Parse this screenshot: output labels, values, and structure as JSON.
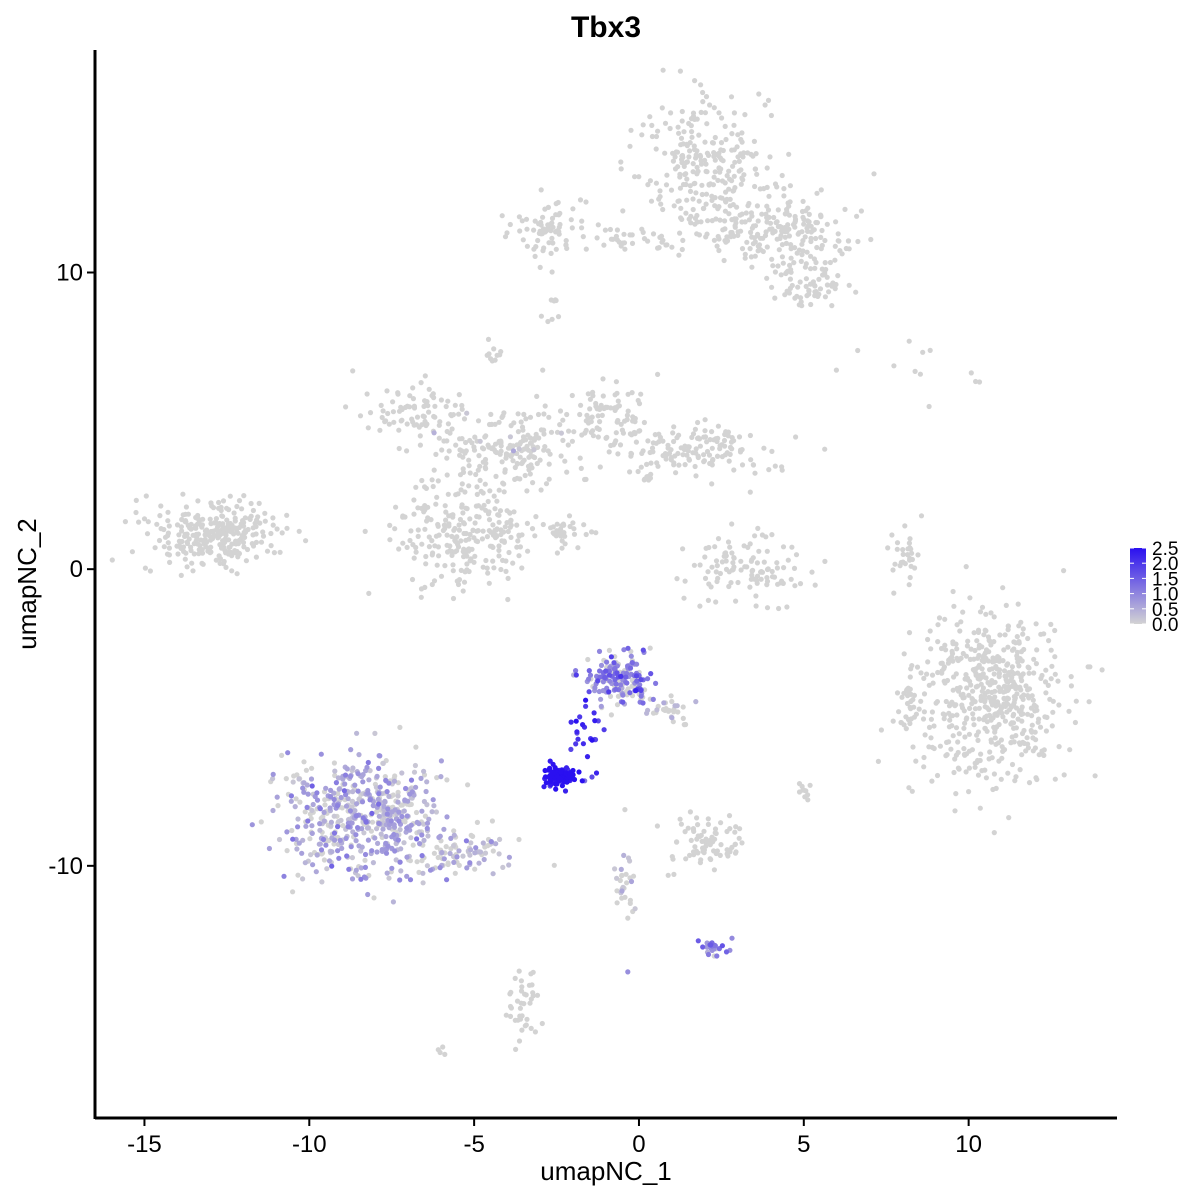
{
  "chart_data": {
    "type": "scatter",
    "title": "Tbx3",
    "xlabel": "umapNC_1",
    "ylabel": "umapNC_2",
    "xlim": [
      -16.5,
      14.5
    ],
    "ylim": [
      -18.5,
      17.5
    ],
    "x_ticks": [
      -15,
      -10,
      -5,
      0,
      5,
      10
    ],
    "x_tick_labels": [
      "-15",
      "-10",
      "-5",
      "0",
      "5",
      "10"
    ],
    "y_ticks": [
      -10,
      0,
      10
    ],
    "y_tick_labels": [
      "-10",
      "0",
      "10"
    ],
    "grid": false,
    "legend_position": "right",
    "color_scale": {
      "low_color": "#d3d3d3",
      "high_color": "#2a10f0",
      "min": 0.0,
      "max": 2.5,
      "breaks": [
        0.0,
        0.5,
        1.0,
        1.5,
        2.0,
        2.5
      ],
      "break_labels": [
        "0.0",
        "0.5",
        "1.0",
        "1.5",
        "2.0",
        "2.5"
      ]
    },
    "clusters": [
      {
        "id": "top-right-branch",
        "center": [
          2.0,
          13.5
        ],
        "spread": [
          1.0,
          1.2
        ],
        "n": 260,
        "expr_mean": 0.0,
        "expr_frac": 0.0
      },
      {
        "id": "top-right-arm",
        "center": [
          4.3,
          11.3
        ],
        "spread": [
          1.1,
          0.6
        ],
        "n": 200,
        "expr_mean": 0.0,
        "expr_frac": 0.0
      },
      {
        "id": "top-left-knob",
        "center": [
          -2.8,
          11.5
        ],
        "spread": [
          0.6,
          0.5
        ],
        "n": 70,
        "expr_mean": 0.0,
        "expr_frac": 0.0
      },
      {
        "id": "top-bridge",
        "center": [
          -0.5,
          11.1
        ],
        "spread": [
          1.3,
          0.2
        ],
        "n": 40,
        "expr_mean": 0.0,
        "expr_frac": 0.0
      },
      {
        "id": "top-tail",
        "center": [
          5.3,
          9.5
        ],
        "spread": [
          0.6,
          0.4
        ],
        "n": 60,
        "expr_mean": 0.0,
        "expr_frac": 0.0
      },
      {
        "id": "isolated-top",
        "center": [
          -2.7,
          8.8
        ],
        "spread": [
          0.15,
          0.3
        ],
        "n": 8,
        "expr_mean": 0.0,
        "expr_frac": 0.0
      },
      {
        "id": "small-top",
        "center": [
          -4.4,
          7.2
        ],
        "spread": [
          0.15,
          0.2
        ],
        "n": 10,
        "expr_mean": 0.0,
        "expr_frac": 0.0
      },
      {
        "id": "star-left-arm",
        "center": [
          -6.5,
          5.3
        ],
        "spread": [
          0.8,
          0.5
        ],
        "n": 90,
        "expr_mean": 0.0,
        "expr_frac": 0.0
      },
      {
        "id": "star-center",
        "center": [
          -3.8,
          4.1
        ],
        "spread": [
          1.0,
          0.6
        ],
        "n": 170,
        "expr_mean": 0.0,
        "expr_frac": 0.05
      },
      {
        "id": "star-right-top",
        "center": [
          -1.0,
          5.2
        ],
        "spread": [
          0.6,
          0.7
        ],
        "n": 90,
        "expr_mean": 0.0,
        "expr_frac": 0.0
      },
      {
        "id": "star-right-arm",
        "center": [
          1.5,
          4.0
        ],
        "spread": [
          1.2,
          0.5
        ],
        "n": 150,
        "expr_mean": 0.0,
        "expr_frac": 0.0
      },
      {
        "id": "star-bottom",
        "center": [
          -5.2,
          1.2
        ],
        "spread": [
          1.1,
          0.9
        ],
        "n": 260,
        "expr_mean": 0.0,
        "expr_frac": 0.0
      },
      {
        "id": "star-streak",
        "center": [
          -2.2,
          1.3
        ],
        "spread": [
          0.6,
          0.25
        ],
        "n": 30,
        "expr_mean": 0.0,
        "expr_frac": 0.0
      },
      {
        "id": "left-island",
        "center": [
          -13.0,
          1.2
        ],
        "spread": [
          1.0,
          0.55
        ],
        "n": 280,
        "expr_mean": 0.0,
        "expr_frac": 0.0
      },
      {
        "id": "center-arc",
        "center": [
          3.2,
          0.0
        ],
        "spread": [
          0.9,
          0.6
        ],
        "n": 110,
        "expr_mean": 0.0,
        "expr_frac": 0.0
      },
      {
        "id": "thin-right-strand",
        "center": [
          8.1,
          0.4
        ],
        "spread": [
          0.2,
          0.6
        ],
        "n": 30,
        "expr_mean": 0.0,
        "expr_frac": 0.0
      },
      {
        "id": "sparse-right",
        "center": [
          8.5,
          6.5
        ],
        "spread": [
          1.3,
          0.6
        ],
        "n": 12,
        "expr_mean": 0.0,
        "expr_frac": 0.0
      },
      {
        "id": "right-blob",
        "center": [
          10.7,
          -4.3
        ],
        "spread": [
          1.1,
          1.5
        ],
        "n": 560,
        "expr_mean": 0.0,
        "expr_frac": 0.0
      },
      {
        "id": "right-blob-edge",
        "center": [
          8.1,
          -4.6
        ],
        "spread": [
          0.2,
          0.4
        ],
        "n": 20,
        "expr_mean": 0.0,
        "expr_frac": 0.0
      },
      {
        "id": "bottom-left-blob",
        "center": [
          -8.4,
          -8.3
        ],
        "spread": [
          1.2,
          1.0
        ],
        "n": 560,
        "expr_mean": 0.55,
        "expr_frac": 0.7
      },
      {
        "id": "bottom-left-tail",
        "center": [
          -5.5,
          -9.6
        ],
        "spread": [
          1.0,
          0.4
        ],
        "n": 90,
        "expr_mean": 0.4,
        "expr_frac": 0.6
      },
      {
        "id": "upper-mid-cluster",
        "center": [
          -0.6,
          -3.7
        ],
        "spread": [
          0.5,
          0.45
        ],
        "n": 190,
        "expr_mean": 1.1,
        "expr_frac": 0.6
      },
      {
        "id": "upper-mid-tail",
        "center": [
          0.8,
          -4.8
        ],
        "spread": [
          0.3,
          0.35
        ],
        "n": 30,
        "expr_mean": 0.3,
        "expr_frac": 0.4
      },
      {
        "id": "dense-blue-cluster",
        "center": [
          -2.4,
          -7.0
        ],
        "spread": [
          0.25,
          0.15
        ],
        "n": 110,
        "expr_mean": 2.4,
        "expr_frac": 1.0
      },
      {
        "id": "blue-bridge",
        "center": [
          -1.5,
          -5.5
        ],
        "spread": [
          0.3,
          0.6
        ],
        "n": 25,
        "expr_mean": 2.0,
        "expr_frac": 1.0
      },
      {
        "id": "lower-mid-cluster",
        "center": [
          2.0,
          -9.2
        ],
        "spread": [
          0.6,
          0.5
        ],
        "n": 80,
        "expr_mean": 0.0,
        "expr_frac": 0.0
      },
      {
        "id": "mid-strand",
        "center": [
          -0.4,
          -10.8
        ],
        "spread": [
          0.2,
          0.9
        ],
        "n": 30,
        "expr_mean": 0.3,
        "expr_frac": 0.3
      },
      {
        "id": "bottom-right-spot",
        "center": [
          2.3,
          -12.7
        ],
        "spread": [
          0.25,
          0.15
        ],
        "n": 25,
        "expr_mean": 1.0,
        "expr_frac": 0.9
      },
      {
        "id": "bottom-strand",
        "center": [
          -3.5,
          -14.8
        ],
        "spread": [
          0.3,
          0.8
        ],
        "n": 40,
        "expr_mean": 0.0,
        "expr_frac": 0.0
      },
      {
        "id": "small-right-mid",
        "center": [
          5.0,
          -7.4
        ],
        "spread": [
          0.1,
          0.15
        ],
        "n": 10,
        "expr_mean": 0.0,
        "expr_frac": 0.0
      },
      {
        "id": "bottom-outlier",
        "center": [
          -6.0,
          -16.2
        ],
        "spread": [
          0.1,
          0.1
        ],
        "n": 4,
        "expr_mean": 0.0,
        "expr_frac": 0.0
      }
    ]
  }
}
